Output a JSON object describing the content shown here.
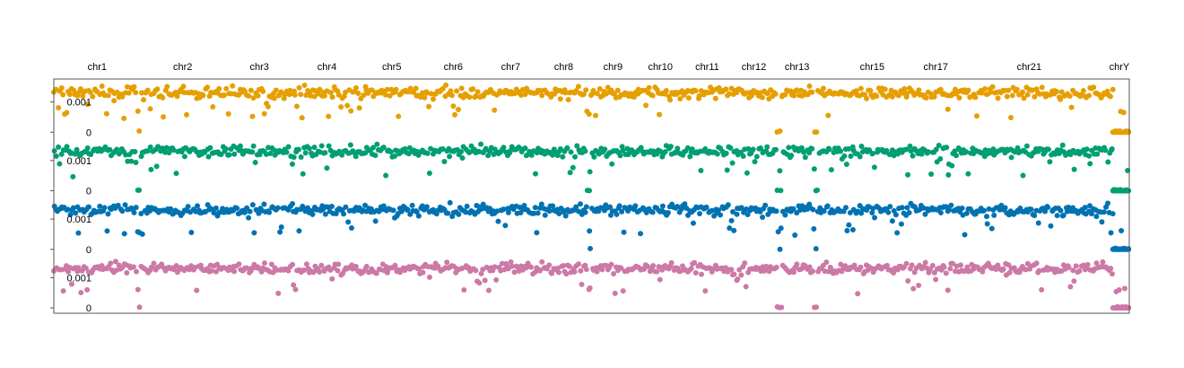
{
  "chart_data": {
    "type": "scatter",
    "title": "",
    "xlabel": "",
    "ylabel": "",
    "chromosomes": [
      {
        "label": "chr1",
        "start": 0,
        "end": 249
      },
      {
        "label": "chr2",
        "start": 249,
        "end": 491
      },
      {
        "label": "chr3",
        "start": 491,
        "end": 689
      },
      {
        "label": "chr4",
        "start": 689,
        "end": 879
      },
      {
        "label": "chr5",
        "start": 879,
        "end": 1061
      },
      {
        "label": "chr6",
        "start": 1061,
        "end": 1232
      },
      {
        "label": "chr7",
        "start": 1232,
        "end": 1391
      },
      {
        "label": "chr8",
        "start": 1391,
        "end": 1536
      },
      {
        "label": "chr9",
        "start": 1536,
        "end": 1674
      },
      {
        "label": "chr10",
        "start": 1674,
        "end": 1808
      },
      {
        "label": "chr11",
        "start": 1808,
        "end": 1943
      },
      {
        "label": "chr12",
        "start": 1943,
        "end": 2076
      },
      {
        "label": "chr13",
        "start": 2076,
        "end": 2191
      },
      {
        "label": "",
        "start": 2191,
        "end": 2298
      },
      {
        "label": "chr15",
        "start": 2298,
        "end": 2400
      },
      {
        "label": "",
        "start": 2400,
        "end": 2490
      },
      {
        "label": "chr17",
        "start": 2490,
        "end": 2573
      },
      {
        "label": "",
        "start": 2573,
        "end": 2653
      },
      {
        "label": "",
        "start": 2653,
        "end": 2712
      },
      {
        "label": "",
        "start": 2712,
        "end": 2776
      },
      {
        "label": "chr21",
        "start": 2776,
        "end": 2823
      },
      {
        "label": "",
        "start": 2823,
        "end": 2874
      },
      {
        "label": "",
        "start": 2874,
        "end": 3030
      },
      {
        "label": "chrY",
        "start": 3030,
        "end": 3087
      }
    ],
    "panels": [
      {
        "color": "#E69F00",
        "y_ticks": [
          {
            "value": 0.001,
            "label": "0.001"
          },
          {
            "value": 0,
            "label": "0"
          }
        ]
      },
      {
        "color": "#009E73",
        "y_ticks": [
          {
            "value": 0.001,
            "label": "0.001"
          },
          {
            "value": 0,
            "label": "0"
          }
        ]
      },
      {
        "color": "#0072B2",
        "y_ticks": [
          {
            "value": 0.001,
            "label": "0.001"
          },
          {
            "value": 0,
            "label": "0"
          }
        ]
      },
      {
        "color": "#CC79A7",
        "y_ticks": [
          {
            "value": 0.001,
            "label": "0.001"
          },
          {
            "value": 0,
            "label": "0"
          }
        ]
      }
    ],
    "y_range_per_panel": [
      0,
      0.0017
    ],
    "typical_value": 0.0013,
    "points_per_panel": 620,
    "low_regions": [
      {
        "from": 240,
        "to": 249
      },
      {
        "from": 1530,
        "to": 1540
      },
      {
        "from": 2076,
        "to": 2090
      },
      {
        "from": 2180,
        "to": 2192
      },
      {
        "from": 3040,
        "to": 3087
      }
    ],
    "grid": false,
    "legend": "none"
  }
}
